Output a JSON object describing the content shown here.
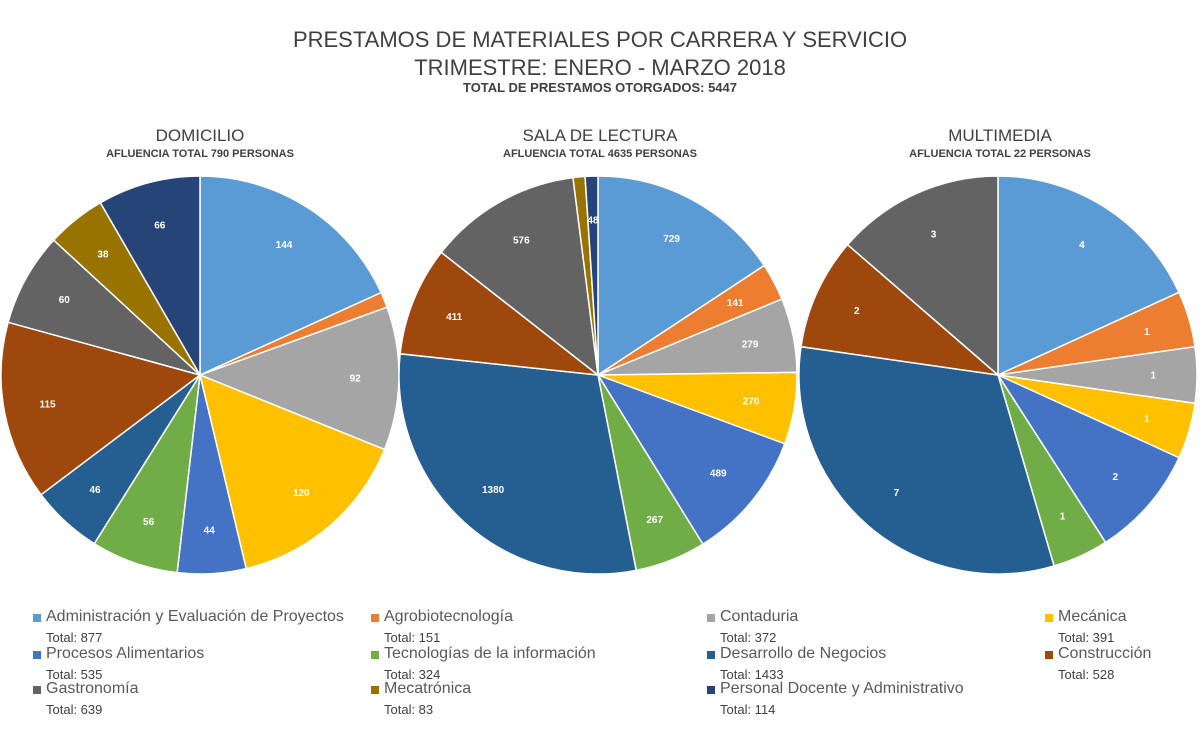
{
  "header": {
    "title": "PRESTAMOS DE MATERIALES POR CARRERA Y SERVICIO",
    "subtitle": "TRIMESTRE: ENERO - MARZO 2018",
    "total": "TOTAL DE PRESTAMOS OTORGADOS: 5447"
  },
  "legend": [
    {
      "name": "Administración y Evaluación de Proyectos",
      "total": "Total: 877",
      "color": "#5B9BD5"
    },
    {
      "name": "Agrobiotecnología",
      "total": "Total: 151",
      "color": "#ED7D31"
    },
    {
      "name": "Contaduria",
      "total": "Total: 372",
      "color": "#A5A5A5"
    },
    {
      "name": "Mecánica",
      "total": "Total: 391",
      "color": "#FFC000"
    },
    {
      "name": "Procesos Alimentarios",
      "total": "Total: 535",
      "color": "#4472C4"
    },
    {
      "name": "Tecnologías de la información",
      "total": "Total: 324",
      "color": "#70AD47"
    },
    {
      "name": "Desarrollo de Negocios",
      "total": "Total: 1433",
      "color": "#255E91"
    },
    {
      "name": "Construcción",
      "total": "Total: 528",
      "color": "#9E480E"
    },
    {
      "name": "Gastronomía",
      "total": "Total: 639",
      "color": "#636363"
    },
    {
      "name": "Mecatrónica",
      "total": "Total: 83",
      "color": "#997300"
    },
    {
      "name": "Personal Docente y Administrativo",
      "total": "Total: 114",
      "color": "#264478"
    }
  ],
  "chart_data": [
    {
      "type": "pie",
      "title": "DOMICILIO",
      "subtitle": "AFLUENCIA TOTAL 790 PERSONAS",
      "categories": [
        "Administración y Evaluación de Proyectos",
        "Agrobiotecnología",
        "Contaduria",
        "Mecánica",
        "Procesos Alimentarios",
        "Tecnologías de la información",
        "Desarrollo de Negocios",
        "Construcción",
        "Gastronomía",
        "Mecatrónica",
        "Personal Docente y Administrativo"
      ],
      "values": [
        144,
        10,
        92,
        120,
        44,
        56,
        46,
        115,
        60,
        38,
        66
      ],
      "labels": [
        "144",
        "",
        "92",
        "120",
        "44",
        "56",
        "46",
        "115",
        "60",
        "38",
        "66"
      ]
    },
    {
      "type": "pie",
      "title": "SALA DE LECTURA",
      "subtitle": "AFLUENCIA TOTAL 4635 PERSONAS",
      "categories": [
        "Administración y Evaluación de Proyectos",
        "Agrobiotecnología",
        "Contaduria",
        "Mecánica",
        "Procesos Alimentarios",
        "Tecnologías de la información",
        "Desarrollo de Negocios",
        "Construcción",
        "Gastronomía",
        "Mecatrónica",
        "Personal Docente y Administrativo"
      ],
      "values": [
        729,
        141,
        279,
        270,
        489,
        267,
        1380,
        411,
        576,
        45,
        48
      ],
      "labels": [
        "729",
        "141",
        "279",
        "270",
        "489",
        "267",
        "1380",
        "411",
        "576",
        "",
        "48"
      ]
    },
    {
      "type": "pie",
      "title": "MULTIMEDIA",
      "subtitle": "AFLUENCIA TOTAL 22 PERSONAS",
      "categories": [
        "Administración y Evaluación de Proyectos",
        "Agrobiotecnología",
        "Contaduria",
        "Mecánica",
        "Procesos Alimentarios",
        "Tecnologías de la información",
        "Desarrollo de Negocios",
        "Construcción",
        "Gastronomía"
      ],
      "values": [
        4,
        1,
        1,
        1,
        2,
        1,
        7,
        2,
        3
      ],
      "labels": [
        "4",
        "1",
        "1",
        "1",
        "2",
        "1",
        "7",
        "2",
        "3"
      ]
    }
  ]
}
